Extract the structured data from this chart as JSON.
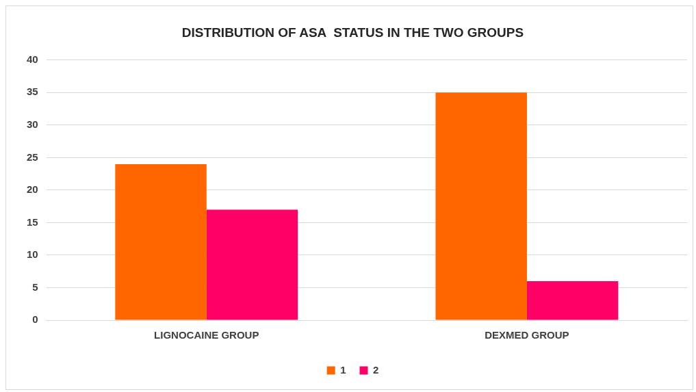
{
  "chart_data": {
    "type": "bar",
    "title": "DISTRIBUTION OF ASA  STATUS IN THE TWO GROUPS",
    "categories": [
      "LIGNOCAINE GROUP",
      "DEXMED GROUP"
    ],
    "series": [
      {
        "name": "1",
        "color": "#ff6600",
        "values": [
          24,
          35
        ]
      },
      {
        "name": "2",
        "color": "#ff0066",
        "values": [
          17,
          6
        ]
      }
    ],
    "ylim": [
      0,
      40
    ],
    "yticks": [
      0,
      5,
      10,
      15,
      20,
      25,
      30,
      35,
      40
    ],
    "grid": "y",
    "legend": "bottom"
  }
}
